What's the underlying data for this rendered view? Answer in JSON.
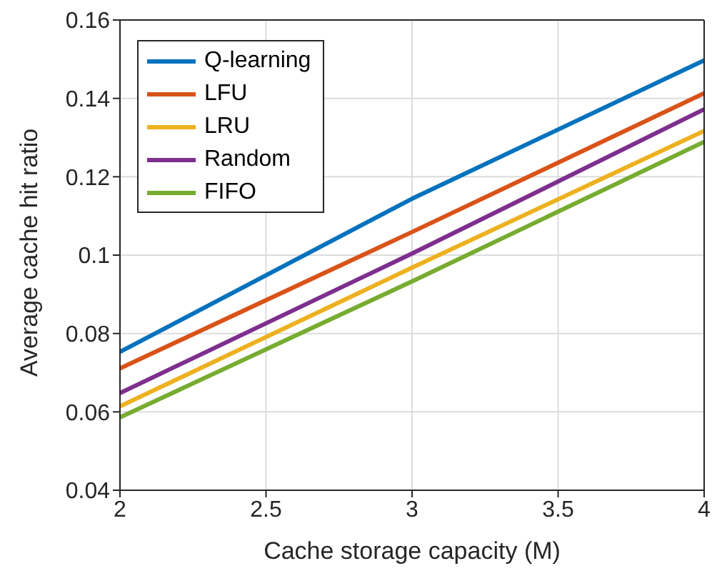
{
  "chart_data": {
    "type": "line",
    "xlabel": "Cache storage capacity (M)",
    "ylabel": "Average cache hit ratio",
    "x": [
      2,
      3,
      4
    ],
    "series": [
      {
        "name": "Q-learning",
        "color": "#0072bd",
        "values": [
          0.0753,
          0.1144,
          0.1497
        ]
      },
      {
        "name": "LFU",
        "color": "#d95319",
        "values": [
          0.0711,
          0.1059,
          0.1413
        ]
      },
      {
        "name": "LRU",
        "color": "#edb120",
        "values": [
          0.0614,
          0.0968,
          0.1317
        ]
      },
      {
        "name": "Random",
        "color": "#7e2f8e",
        "values": [
          0.0648,
          0.1004,
          0.1372
        ]
      },
      {
        "name": "FIFO",
        "color": "#77ac30",
        "values": [
          0.0586,
          0.0933,
          0.1289
        ]
      }
    ],
    "xlim": [
      2,
      4
    ],
    "xticks": [
      2,
      2.5,
      3,
      3.5,
      4
    ],
    "ylim": [
      0.04,
      0.16
    ],
    "yticks": [
      0.04,
      0.06,
      0.08,
      0.1,
      0.12,
      0.14,
      0.16
    ],
    "grid": true,
    "legend": "top left",
    "marker": "none",
    "line_style": "solid"
  }
}
